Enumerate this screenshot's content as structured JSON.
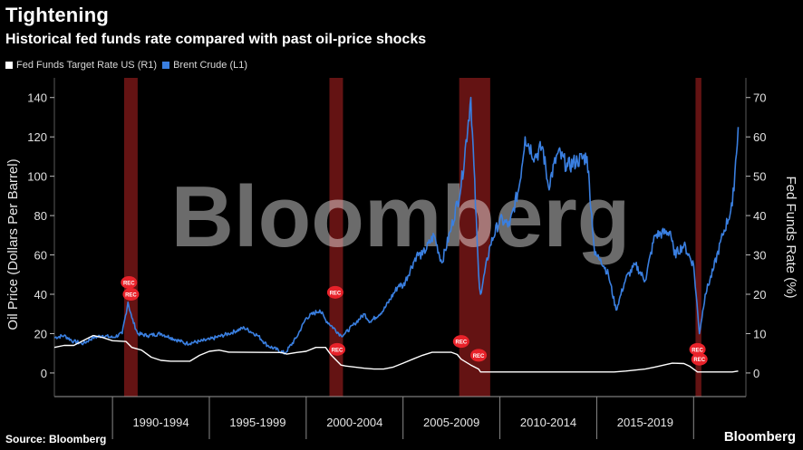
{
  "header": {
    "title": "Tightening",
    "subtitle": "Historical fed funds rate compared with past oil-price shocks"
  },
  "legend": [
    {
      "label": "Fed Funds Target Rate US (R1)",
      "color": "#ffffff"
    },
    {
      "label": "Brent Crude (L1)",
      "color": "#3a7fe0"
    }
  ],
  "footer": {
    "source": "Source: Bloomberg",
    "brand": "Bloomberg"
  },
  "watermark": "Bloomberg",
  "recession_marker": "REC",
  "chart_data": {
    "type": "line",
    "title": "Tightening",
    "subtitle": "Historical fed funds rate compared with past oil-price shocks",
    "y_left": {
      "label": "Oil Price (Dollars Per Barrel)",
      "range": [
        -12,
        150
      ],
      "ticks": [
        0,
        20,
        40,
        60,
        80,
        100,
        120,
        140
      ]
    },
    "y_right": {
      "label": "Fed Funds Rate (%)",
      "range": [
        -6,
        75
      ],
      "ticks": [
        0,
        10,
        20,
        30,
        40,
        50,
        60,
        70
      ]
    },
    "x_range": [
      1987.0,
      2022.7
    ],
    "x_categories": [
      {
        "label": "1990-1994",
        "start": 1990,
        "end": 1995
      },
      {
        "label": "1995-1999",
        "start": 1995,
        "end": 2000
      },
      {
        "label": "2000-2004",
        "start": 2000,
        "end": 2005
      },
      {
        "label": "2005-2009",
        "start": 2005,
        "end": 2010
      },
      {
        "label": "2010-2014",
        "start": 2010,
        "end": 2015
      },
      {
        "label": "2015-2019",
        "start": 2015,
        "end": 2020
      }
    ],
    "recessions": [
      {
        "start": 1990.6,
        "end": 1991.3
      },
      {
        "start": 2001.2,
        "end": 2001.9
      },
      {
        "start": 2007.9,
        "end": 2009.5
      },
      {
        "start": 2020.1,
        "end": 2020.4
      }
    ],
    "series": [
      {
        "name": "Brent Crude (L1)",
        "axis": "left",
        "color": "#3a7fe0",
        "x": [
          1987.0,
          1987.5,
          1988.0,
          1988.5,
          1989.0,
          1989.5,
          1990.0,
          1990.5,
          1990.8,
          1991.0,
          1991.3,
          1991.8,
          1992.5,
          1993.0,
          1993.8,
          1994.5,
          1995.0,
          1996.0,
          1996.8,
          1997.5,
          1998.0,
          1998.9,
          1999.5,
          2000.0,
          2000.7,
          2001.0,
          2001.8,
          2002.0,
          2002.5,
          2003.0,
          2003.3,
          2004.0,
          2004.8,
          2005.0,
          2005.7,
          2006.0,
          2006.6,
          2007.0,
          2007.5,
          2008.0,
          2008.5,
          2008.9,
          2009.0,
          2009.5,
          2010.0,
          2010.5,
          2011.0,
          2011.3,
          2011.8,
          2012.2,
          2012.5,
          2013.0,
          2013.5,
          2014.0,
          2014.5,
          2014.9,
          2015.2,
          2015.6,
          2016.0,
          2016.5,
          2017.0,
          2017.5,
          2018.0,
          2018.8,
          2019.0,
          2019.5,
          2020.0,
          2020.3,
          2020.6,
          2021.0,
          2021.5,
          2022.0,
          2022.3
        ],
        "y": [
          18,
          19,
          16,
          15,
          18,
          19,
          18,
          20,
          36,
          28,
          20,
          19,
          20,
          18,
          15,
          16,
          17,
          20,
          23,
          19,
          14,
          10,
          18,
          28,
          32,
          27,
          19,
          20,
          25,
          30,
          26,
          32,
          45,
          44,
          60,
          60,
          70,
          56,
          74,
          95,
          140,
          50,
          40,
          65,
          78,
          75,
          95,
          120,
          110,
          115,
          95,
          112,
          105,
          108,
          110,
          60,
          58,
          50,
          32,
          48,
          55,
          47,
          70,
          72,
          60,
          65,
          55,
          20,
          40,
          52,
          70,
          85,
          125
        ]
      },
      {
        "name": "Fed Funds Target Rate US (R1)",
        "axis": "right",
        "color": "#ffffff",
        "x": [
          1987.0,
          1987.5,
          1988.0,
          1989.0,
          1989.5,
          1990.0,
          1990.7,
          1991.0,
          1991.5,
          1992.0,
          1992.5,
          1993.0,
          1994.0,
          1994.5,
          1995.0,
          1995.5,
          1996.0,
          1998.7,
          1999.0,
          1999.5,
          2000.0,
          2000.5,
          2001.0,
          2001.3,
          2001.8,
          2002.0,
          2003.0,
          2003.5,
          2004.0,
          2004.5,
          2005.0,
          2005.5,
          2006.0,
          2006.5,
          2007.5,
          2007.8,
          2008.0,
          2008.5,
          2008.9,
          2009.0,
          2015.9,
          2016.5,
          2017.5,
          2018.0,
          2018.9,
          2019.5,
          2019.8,
          2020.2,
          2022.0,
          2022.3
        ],
        "y": [
          6.5,
          7,
          7,
          9.5,
          9,
          8.2,
          8,
          6.5,
          5.8,
          4,
          3.2,
          3,
          3,
          4.5,
          5.5,
          5.8,
          5.3,
          5.2,
          4.8,
          5.2,
          5.5,
          6.5,
          6.5,
          4.5,
          2,
          1.8,
          1.2,
          1,
          1,
          1.5,
          2.5,
          3.5,
          4.5,
          5.25,
          5.25,
          4.7,
          3.5,
          2,
          1,
          0.25,
          0.25,
          0.5,
          1,
          1.5,
          2.5,
          2.4,
          1.7,
          0.25,
          0.25,
          0.5
        ]
      }
    ]
  }
}
